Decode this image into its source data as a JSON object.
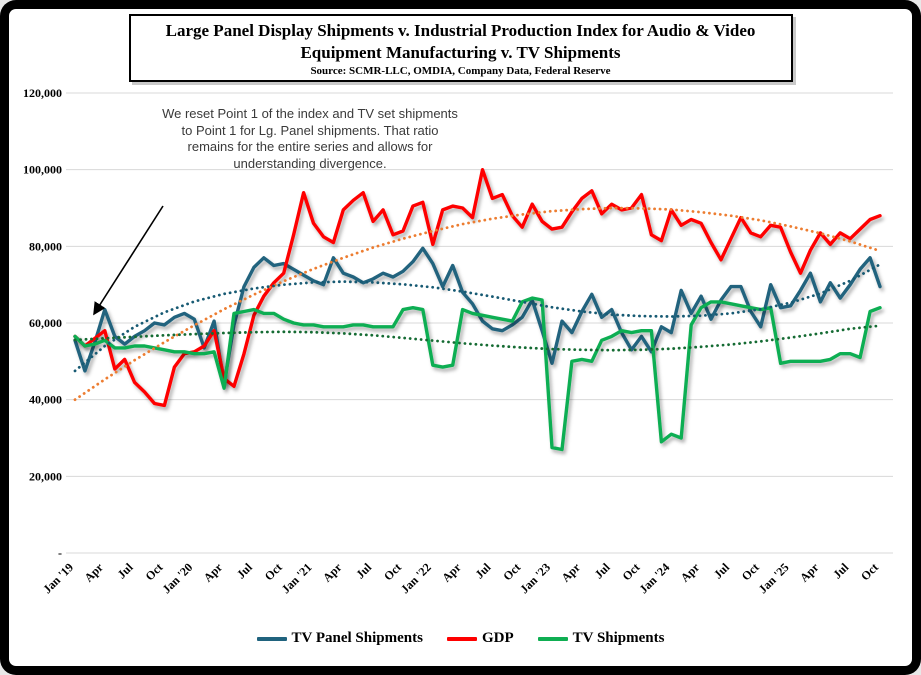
{
  "title": {
    "text": "Large Panel Display Shipments v. Industrial Production Index for Audio & Video Equipment Manufacturing v. TV Shipments",
    "source": "Source: SCMR-LLC, OMDIA, Company Data, Federal Reserve"
  },
  "annotation": {
    "text": "We reset Point 1 of the index and TV set shipments to Point 1 for Lg. Panel shipments.  That ratio remains for the entire series and allows for understanding divergence."
  },
  "chart_data": {
    "type": "line",
    "title": "Large Panel Display Shipments v. Industrial Production Index for Audio & Video Equipment Manufacturing v. TV Shipments",
    "x_axis": "Months, Jan 2019 - Oct 2025 (quarterly tick labels, monthly data points)",
    "x_tick_labels": [
      "Jan '19",
      "Apr",
      "Jul",
      "Oct",
      "Jan '20",
      "Apr",
      "Jul",
      "Oct",
      "Jan '21",
      "Apr",
      "Jul",
      "Oct",
      "Jan '22",
      "Apr",
      "Jul",
      "Oct",
      "Jan '23",
      "Apr",
      "Jul",
      "Oct",
      "Jan '24",
      "Apr",
      "Jul",
      "Oct",
      "Jan '25",
      "Apr",
      "Jul",
      "Oct"
    ],
    "months_per_tick": 3,
    "ylim": [
      0,
      120000
    ],
    "grid": true,
    "legend_position": "bottom",
    "y_ticks": [
      {
        "value": 120000,
        "label": "120,000"
      },
      {
        "value": 100000,
        "label": "100,000"
      },
      {
        "value": 80000,
        "label": "80,000"
      },
      {
        "value": 60000,
        "label": "60,000"
      },
      {
        "value": 40000,
        "label": "40,000"
      },
      {
        "value": 20000,
        "label": "20,000"
      },
      {
        "value": 0,
        "label": "-"
      }
    ],
    "series": [
      {
        "name": "TV Panel Shipments",
        "color": "#20637e",
        "style": "solid",
        "values": [
          55500,
          47500,
          55000,
          63500,
          56500,
          54500,
          56500,
          58000,
          60000,
          59500,
          61500,
          62500,
          61000,
          53500,
          60500,
          44000,
          59500,
          69500,
          74500,
          77000,
          75000,
          75500,
          74000,
          72500,
          71000,
          70000,
          77000,
          73000,
          72000,
          70500,
          71500,
          73000,
          72000,
          73500,
          76000,
          79500,
          75500,
          69500,
          75000,
          68000,
          65000,
          60500,
          58500,
          58000,
          59500,
          61500,
          66000,
          58000,
          49500,
          60500,
          57500,
          63000,
          67500,
          61500,
          63500,
          57500,
          53000,
          56500,
          52500,
          59000,
          57500,
          68500,
          62500,
          67000,
          61000,
          66000,
          69500,
          69500,
          63000,
          59000,
          70000,
          64000,
          64500,
          68500,
          73000,
          65500,
          70500,
          66500,
          70000,
          74000,
          77000,
          69500
        ]
      },
      {
        "name": "GDP",
        "color": "#fe0000",
        "style": "solid",
        "values": [
          56500,
          54000,
          56000,
          58000,
          48000,
          50500,
          44500,
          42000,
          39000,
          38500,
          48500,
          52000,
          52500,
          54000,
          58000,
          45500,
          43500,
          52000,
          62000,
          67000,
          70500,
          73000,
          83000,
          94000,
          86000,
          82500,
          81000,
          89500,
          92000,
          94000,
          86500,
          89500,
          83000,
          84000,
          90500,
          91500,
          80500,
          89500,
          90500,
          90000,
          87500,
          100000,
          92500,
          93500,
          88000,
          85000,
          91000,
          86500,
          84500,
          85000,
          89000,
          92500,
          94500,
          88500,
          91000,
          89500,
          90000,
          93500,
          83000,
          81500,
          89500,
          85500,
          87000,
          86000,
          81000,
          76500,
          82000,
          87500,
          83500,
          82500,
          85500,
          85000,
          78500,
          73000,
          79000,
          83500,
          80500,
          83500,
          82000,
          84500,
          87000,
          88000
        ]
      },
      {
        "name": "TV Shipments",
        "color": "#0fae52",
        "style": "solid",
        "values": [
          56500,
          54000,
          54500,
          55500,
          53500,
          53500,
          54000,
          54000,
          53500,
          53000,
          52500,
          52500,
          52000,
          52000,
          52500,
          43000,
          62500,
          63000,
          63500,
          62500,
          62500,
          61000,
          60000,
          59500,
          59500,
          59000,
          59000,
          59000,
          59500,
          59500,
          59000,
          59000,
          59000,
          63500,
          64000,
          63500,
          49000,
          48500,
          49000,
          63500,
          62500,
          62000,
          61500,
          61000,
          60500,
          65500,
          66500,
          66000,
          27500,
          27000,
          50000,
          50500,
          50000,
          55500,
          56500,
          58000,
          57500,
          58000,
          58000,
          29000,
          31000,
          30000,
          59500,
          64000,
          65500,
          65500,
          65000,
          64500,
          64000,
          63500,
          64000,
          49500,
          50000,
          50000,
          50000,
          50000,
          50500,
          52000,
          52000,
          51000,
          63000,
          64000
        ]
      }
    ],
    "trendlines": [
      {
        "name": "GDP trend",
        "color": "#ed7d31",
        "style": "dotted",
        "months_per_point": 3,
        "values": [
          40000,
          45300,
          50300,
          55000,
          59400,
          63600,
          67400,
          70900,
          74100,
          77000,
          79700,
          82000,
          84000,
          85800,
          87200,
          88300,
          89200,
          89700,
          90000,
          89900,
          89600,
          88900,
          88000,
          86800,
          85200,
          83400,
          81300,
          78800
        ]
      },
      {
        "name": "TV Panel Shipments trend",
        "color": "#175a73",
        "style": "dotted",
        "months_per_point": 3,
        "values": [
          47500,
          54000,
          59000,
          62800,
          65600,
          67600,
          69000,
          70000,
          70600,
          70800,
          70600,
          70100,
          69300,
          68200,
          66900,
          65500,
          64100,
          63000,
          62200,
          61800,
          61700,
          61900,
          62500,
          63600,
          65300,
          67700,
          71000,
          75300
        ]
      },
      {
        "name": "TV Shipments trend",
        "color": "#156b33",
        "style": "dotted",
        "months_per_point": 3,
        "values": [
          55600,
          56000,
          56400,
          56800,
          57100,
          57400,
          57600,
          57700,
          57600,
          57300,
          56800,
          56100,
          55400,
          54700,
          54100,
          53600,
          53200,
          53000,
          52900,
          53000,
          53300,
          53800,
          54400,
          55200,
          56200,
          57300,
          58500,
          59300
        ]
      }
    ]
  }
}
